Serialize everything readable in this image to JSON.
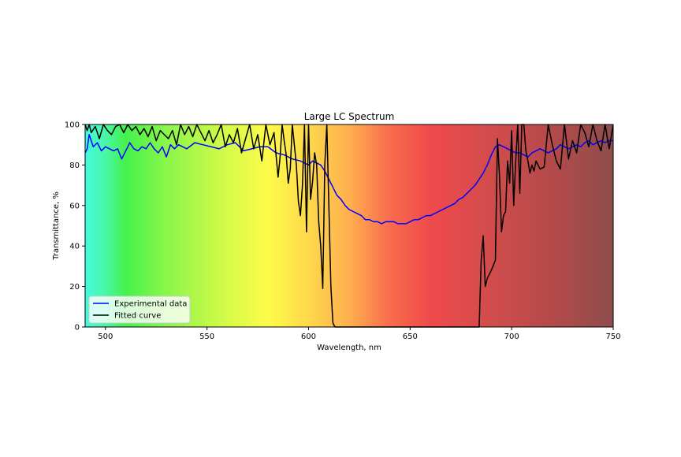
{
  "chart_data": {
    "type": "line",
    "title": "Large LC Spectrum",
    "xlabel": "Wavelength, nm",
    "ylabel": "Transmittance, %",
    "xlim": [
      490,
      750
    ],
    "ylim": [
      0,
      100
    ],
    "xticks": [
      500,
      550,
      600,
      650,
      700,
      750
    ],
    "yticks": [
      0,
      20,
      40,
      60,
      80,
      100
    ],
    "grid": false,
    "legend_position": "lower-left",
    "background": "visible-spectrum color gradient (cyan → green → yellow → orange → red → dark red)",
    "spectrum_stops": [
      {
        "x": 490,
        "color": "#44fbe0"
      },
      {
        "x": 500,
        "color": "#48f6a6"
      },
      {
        "x": 510,
        "color": "#44f24c"
      },
      {
        "x": 530,
        "color": "#8af64a"
      },
      {
        "x": 560,
        "color": "#d6fa48"
      },
      {
        "x": 580,
        "color": "#fdfb4a"
      },
      {
        "x": 600,
        "color": "#fed84c"
      },
      {
        "x": 620,
        "color": "#feb04e"
      },
      {
        "x": 640,
        "color": "#f86c4d"
      },
      {
        "x": 660,
        "color": "#ef4a4c"
      },
      {
        "x": 690,
        "color": "#d24c4c"
      },
      {
        "x": 720,
        "color": "#b44a4a"
      },
      {
        "x": 750,
        "color": "#8f4c4c"
      }
    ],
    "series": [
      {
        "name": "Experimental data",
        "color": "#0000ff",
        "x": [
          490,
          491,
          492,
          494,
          496,
          498,
          500,
          502,
          504,
          506,
          508,
          510,
          512,
          514,
          516,
          518,
          520,
          522,
          524,
          526,
          528,
          530,
          532,
          534,
          536,
          540,
          544,
          548,
          552,
          556,
          560,
          564,
          568,
          572,
          576,
          580,
          584,
          588,
          592,
          596,
          600,
          602,
          604,
          606,
          608,
          610,
          612,
          614,
          616,
          618,
          620,
          622,
          624,
          626,
          628,
          630,
          632,
          634,
          636,
          638,
          640,
          642,
          644,
          646,
          648,
          650,
          652,
          654,
          656,
          658,
          660,
          662,
          664,
          666,
          668,
          670,
          672,
          674,
          676,
          678,
          680,
          682,
          684,
          686,
          688,
          690,
          692,
          694,
          696,
          698,
          700,
          702,
          704,
          706,
          708,
          710,
          712,
          714,
          716,
          718,
          720,
          722,
          724,
          726,
          728,
          730,
          732,
          734,
          736,
          738,
          740,
          742,
          744,
          746,
          748,
          750
        ],
        "y": [
          86,
          88,
          95,
          89,
          91,
          87,
          89,
          88,
          87,
          88,
          83,
          87,
          91,
          88,
          87,
          89,
          88,
          91,
          88,
          86,
          89,
          84,
          90,
          88,
          90,
          88,
          91,
          90,
          89,
          88,
          90,
          91,
          87,
          88,
          89,
          89,
          86,
          85,
          83,
          82,
          80,
          82,
          81,
          80,
          77,
          73,
          69,
          65,
          63,
          60,
          58,
          57,
          56,
          55,
          53,
          53,
          52,
          52,
          51,
          52,
          52,
          52,
          51,
          51,
          51,
          52,
          53,
          53,
          54,
          55,
          55,
          56,
          57,
          58,
          59,
          60,
          61,
          63,
          64,
          66,
          68,
          70,
          73,
          76,
          80,
          85,
          89,
          90,
          89,
          88,
          87,
          86,
          86,
          85,
          84,
          86,
          87,
          88,
          87,
          86,
          87,
          88,
          90,
          89,
          88,
          89,
          90,
          89,
          91,
          92,
          90,
          91,
          92,
          91,
          92,
          92
        ]
      },
      {
        "name": "Fitted curve",
        "color": "#000000",
        "x": [
          490,
          491,
          492,
          493,
          495,
          497,
          499,
          501,
          503,
          505,
          507,
          509,
          511,
          513,
          515,
          517,
          519,
          521,
          523,
          525,
          527,
          529,
          531,
          533,
          535,
          537,
          539,
          541,
          543,
          545,
          547,
          549,
          551,
          553,
          555,
          557,
          559,
          561,
          563,
          565,
          567,
          569,
          571,
          573,
          575,
          577,
          579,
          581,
          583,
          585,
          586,
          587,
          588,
          589,
          590,
          591,
          592,
          593,
          594,
          595,
          596,
          597,
          598,
          599,
          600,
          601,
          602,
          603,
          604,
          605,
          606,
          607,
          608,
          609,
          610,
          611,
          612,
          613,
          615,
          620,
          630,
          640,
          650,
          660,
          670,
          680,
          684,
          685,
          686,
          687,
          688,
          690,
          692,
          693,
          694,
          695,
          696,
          697,
          698,
          699,
          700,
          701,
          702,
          703,
          704,
          705,
          706,
          707,
          708,
          709,
          710,
          711,
          712,
          714,
          716,
          718,
          720,
          722,
          724,
          726,
          728,
          730,
          732,
          734,
          736,
          738,
          740,
          742,
          744,
          746,
          748,
          750
        ],
        "y": [
          100,
          97,
          100,
          96,
          99,
          93,
          100,
          97,
          95,
          99,
          100,
          96,
          100,
          97,
          99,
          95,
          98,
          94,
          99,
          92,
          97,
          95,
          93,
          97,
          90,
          100,
          95,
          99,
          94,
          100,
          96,
          92,
          97,
          91,
          95,
          100,
          89,
          95,
          91,
          98,
          86,
          93,
          100,
          88,
          95,
          82,
          100,
          90,
          96,
          74,
          84,
          100,
          92,
          85,
          71,
          78,
          100,
          90,
          80,
          62,
          55,
          70,
          100,
          47,
          100,
          63,
          72,
          86,
          80,
          52,
          40,
          19,
          80,
          100,
          60,
          20,
          2,
          0,
          0,
          0,
          0,
          0,
          0,
          0,
          0,
          0,
          0,
          33,
          45,
          20,
          24,
          28,
          33,
          93,
          75,
          47,
          55,
          57,
          82,
          71,
          97,
          60,
          82,
          100,
          66,
          100,
          100,
          87,
          82,
          76,
          80,
          77,
          82,
          78,
          79,
          100,
          90,
          82,
          78,
          100,
          83,
          92,
          86,
          100,
          96,
          89,
          100,
          92,
          87,
          100,
          88,
          100
        ]
      }
    ]
  }
}
